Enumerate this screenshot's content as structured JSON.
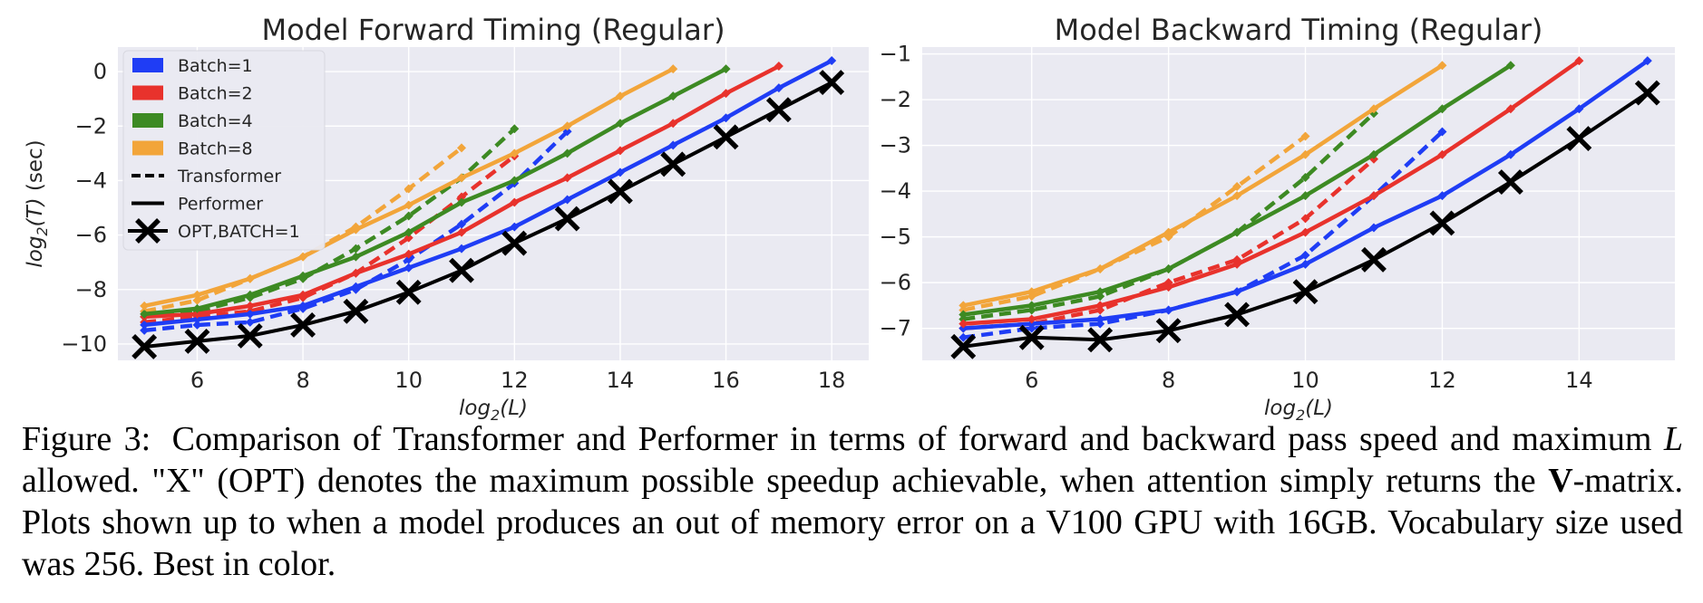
{
  "figure": {
    "label": "Figure 3:",
    "caption_pre": "Comparison of Transformer and Performer in terms of forward and backward pass speed and maximum ",
    "caption_L": "L",
    "caption_mid": " allowed. \"X\" (OPT) denotes the maximum possible speedup achievable, when attention simply returns the ",
    "caption_V": "V",
    "caption_post": "-matrix. Plots shown up to when a model produces an out of memory error on a V100 GPU with 16GB. Vocabulary size used was 256. Best in color."
  },
  "colors": {
    "batch1": "#1f3df5",
    "batch2": "#e8322c",
    "batch4": "#3d8a23",
    "batch8": "#f2a53a",
    "opt": "#000000",
    "plot_bg": "#eaeaf2",
    "grid": "#ffffff"
  },
  "legend": [
    {
      "label": "Batch=1",
      "kind": "patch",
      "color": "#1f3df5"
    },
    {
      "label": "Batch=2",
      "kind": "patch",
      "color": "#e8322c"
    },
    {
      "label": "Batch=4",
      "kind": "patch",
      "color": "#3d8a23"
    },
    {
      "label": "Batch=8",
      "kind": "patch",
      "color": "#f2a53a"
    },
    {
      "label": "Transformer",
      "kind": "dashed"
    },
    {
      "label": "Performer",
      "kind": "solid"
    },
    {
      "label": "OPT,BATCH=1",
      "kind": "x"
    }
  ],
  "chart_data": [
    {
      "type": "line",
      "title": "Model Forward Timing (Regular)",
      "xlabel": "log2(L)",
      "ylabel": "log2(T) (sec)",
      "xlim": [
        4.5,
        18.7
      ],
      "ylim": [
        -10.6,
        0.9
      ],
      "xticks": [
        6,
        8,
        10,
        12,
        14,
        16,
        18
      ],
      "yticks": [
        0,
        -2,
        -4,
        -6,
        -8,
        -10
      ],
      "grid": true,
      "legend_position": "upper-left",
      "series": [
        {
          "name": "Batch=1",
          "model": "Performer",
          "style": "solid",
          "x": [
            5,
            6,
            7,
            8,
            9,
            10,
            11,
            12,
            13,
            14,
            15,
            16,
            17,
            18
          ],
          "y": [
            -9.3,
            -9.1,
            -8.9,
            -8.6,
            -7.9,
            -7.2,
            -6.5,
            -5.7,
            -4.7,
            -3.7,
            -2.7,
            -1.7,
            -0.6,
            0.4
          ]
        },
        {
          "name": "Batch=2",
          "model": "Performer",
          "style": "solid",
          "x": [
            5,
            6,
            7,
            8,
            9,
            10,
            11,
            12,
            13,
            14,
            15,
            16,
            17
          ],
          "y": [
            -9.0,
            -8.9,
            -8.6,
            -8.2,
            -7.4,
            -6.7,
            -5.9,
            -4.8,
            -3.9,
            -2.9,
            -1.9,
            -0.8,
            0.2
          ]
        },
        {
          "name": "Batch=4",
          "model": "Performer",
          "style": "solid",
          "x": [
            5,
            6,
            7,
            8,
            9,
            10,
            11,
            12,
            13,
            14,
            15,
            16
          ],
          "y": [
            -8.9,
            -8.7,
            -8.2,
            -7.5,
            -6.8,
            -5.9,
            -4.8,
            -4.0,
            -3.0,
            -1.9,
            -0.9,
            0.1
          ]
        },
        {
          "name": "Batch=8",
          "model": "Performer",
          "style": "solid",
          "x": [
            5,
            6,
            7,
            8,
            9,
            10,
            11,
            12,
            13,
            14,
            15
          ],
          "y": [
            -8.6,
            -8.2,
            -7.6,
            -6.8,
            -5.8,
            -4.9,
            -3.9,
            -3.0,
            -2.0,
            -0.9,
            0.1
          ]
        },
        {
          "name": "Batch=1",
          "model": "Transformer",
          "style": "dashed",
          "x": [
            5,
            6,
            7,
            8,
            9,
            10,
            11,
            12,
            13
          ],
          "y": [
            -9.5,
            -9.3,
            -9.2,
            -8.7,
            -8.0,
            -6.9,
            -5.6,
            -4.1,
            -2.2
          ]
        },
        {
          "name": "Batch=2",
          "model": "Transformer",
          "style": "dashed",
          "x": [
            5,
            6,
            7,
            8,
            9,
            10,
            11,
            12
          ],
          "y": [
            -9.2,
            -9.0,
            -8.8,
            -8.3,
            -7.4,
            -6.1,
            -4.6,
            -3.1
          ]
        },
        {
          "name": "Batch=4",
          "model": "Transformer",
          "style": "dashed",
          "x": [
            5,
            6,
            7,
            8,
            9,
            10,
            11,
            12
          ],
          "y": [
            -9.0,
            -8.8,
            -8.3,
            -7.6,
            -6.5,
            -5.3,
            -3.9,
            -2.1
          ]
        },
        {
          "name": "Batch=8",
          "model": "Transformer",
          "style": "dashed",
          "x": [
            5,
            6,
            7,
            8,
            9,
            10,
            11
          ],
          "y": [
            -8.8,
            -8.4,
            -7.6,
            -6.8,
            -5.7,
            -4.3,
            -2.8
          ]
        },
        {
          "name": "OPT,BATCH=1",
          "model": "OPT",
          "style": "x",
          "x": [
            5,
            6,
            7,
            8,
            9,
            10,
            11,
            12,
            13,
            14,
            15,
            16,
            17,
            18
          ],
          "y": [
            -10.1,
            -9.9,
            -9.7,
            -9.3,
            -8.8,
            -8.1,
            -7.3,
            -6.3,
            -5.4,
            -4.4,
            -3.4,
            -2.4,
            -1.4,
            -0.4
          ]
        }
      ]
    },
    {
      "type": "line",
      "title": "Model Backward Timing (Regular)",
      "xlabel": "log2(L)",
      "ylabel": "",
      "xlim": [
        4.4,
        15.4
      ],
      "ylim": [
        -7.7,
        -0.85
      ],
      "xticks": [
        6,
        8,
        10,
        12,
        14
      ],
      "yticks": [
        -1,
        -2,
        -3,
        -4,
        -5,
        -6,
        -7
      ],
      "grid": true,
      "series": [
        {
          "name": "Batch=1",
          "model": "Performer",
          "style": "solid",
          "x": [
            5,
            6,
            7,
            8,
            9,
            10,
            11,
            12,
            13,
            14,
            15
          ],
          "y": [
            -7.0,
            -6.9,
            -6.8,
            -6.6,
            -6.2,
            -5.6,
            -4.8,
            -4.1,
            -3.2,
            -2.2,
            -1.15
          ]
        },
        {
          "name": "Batch=2",
          "model": "Performer",
          "style": "solid",
          "x": [
            5,
            6,
            7,
            8,
            9,
            10,
            11,
            12,
            13,
            14
          ],
          "y": [
            -6.9,
            -6.8,
            -6.5,
            -6.1,
            -5.6,
            -4.9,
            -4.1,
            -3.2,
            -2.2,
            -1.15
          ]
        },
        {
          "name": "Batch=4",
          "model": "Performer",
          "style": "solid",
          "x": [
            5,
            6,
            7,
            8,
            9,
            10,
            11,
            12,
            13
          ],
          "y": [
            -6.7,
            -6.5,
            -6.2,
            -5.7,
            -4.9,
            -4.1,
            -3.2,
            -2.2,
            -1.25
          ]
        },
        {
          "name": "Batch=8",
          "model": "Performer",
          "style": "solid",
          "x": [
            5,
            6,
            7,
            8,
            9,
            10,
            11,
            12
          ],
          "y": [
            -6.5,
            -6.2,
            -5.7,
            -4.9,
            -4.1,
            -3.2,
            -2.2,
            -1.25
          ]
        },
        {
          "name": "Batch=1",
          "model": "Transformer",
          "style": "dashed",
          "x": [
            5,
            6,
            7,
            8,
            9,
            10,
            11,
            12
          ],
          "y": [
            -7.2,
            -7.0,
            -6.9,
            -6.6,
            -6.2,
            -5.4,
            -4.1,
            -2.7
          ]
        },
        {
          "name": "Batch=2",
          "model": "Transformer",
          "style": "dashed",
          "x": [
            5,
            6,
            7,
            8,
            9,
            10,
            11
          ],
          "y": [
            -7.0,
            -6.9,
            -6.6,
            -6.0,
            -5.5,
            -4.6,
            -3.3
          ]
        },
        {
          "name": "Batch=4",
          "model": "Transformer",
          "style": "dashed",
          "x": [
            5,
            6,
            7,
            8,
            9,
            10,
            11
          ],
          "y": [
            -6.8,
            -6.6,
            -6.3,
            -5.7,
            -4.9,
            -3.7,
            -2.3
          ]
        },
        {
          "name": "Batch=8",
          "model": "Transformer",
          "style": "dashed",
          "x": [
            5,
            6,
            7,
            8,
            9,
            10
          ],
          "y": [
            -6.6,
            -6.3,
            -5.7,
            -5.0,
            -3.9,
            -2.8
          ]
        },
        {
          "name": "OPT,BATCH=1",
          "model": "OPT",
          "style": "x",
          "x": [
            5,
            6,
            7,
            8,
            9,
            10,
            11,
            12,
            13,
            14,
            15
          ],
          "y": [
            -7.4,
            -7.2,
            -7.25,
            -7.05,
            -6.7,
            -6.2,
            -5.5,
            -4.7,
            -3.8,
            -2.85,
            -1.85
          ]
        }
      ]
    }
  ]
}
